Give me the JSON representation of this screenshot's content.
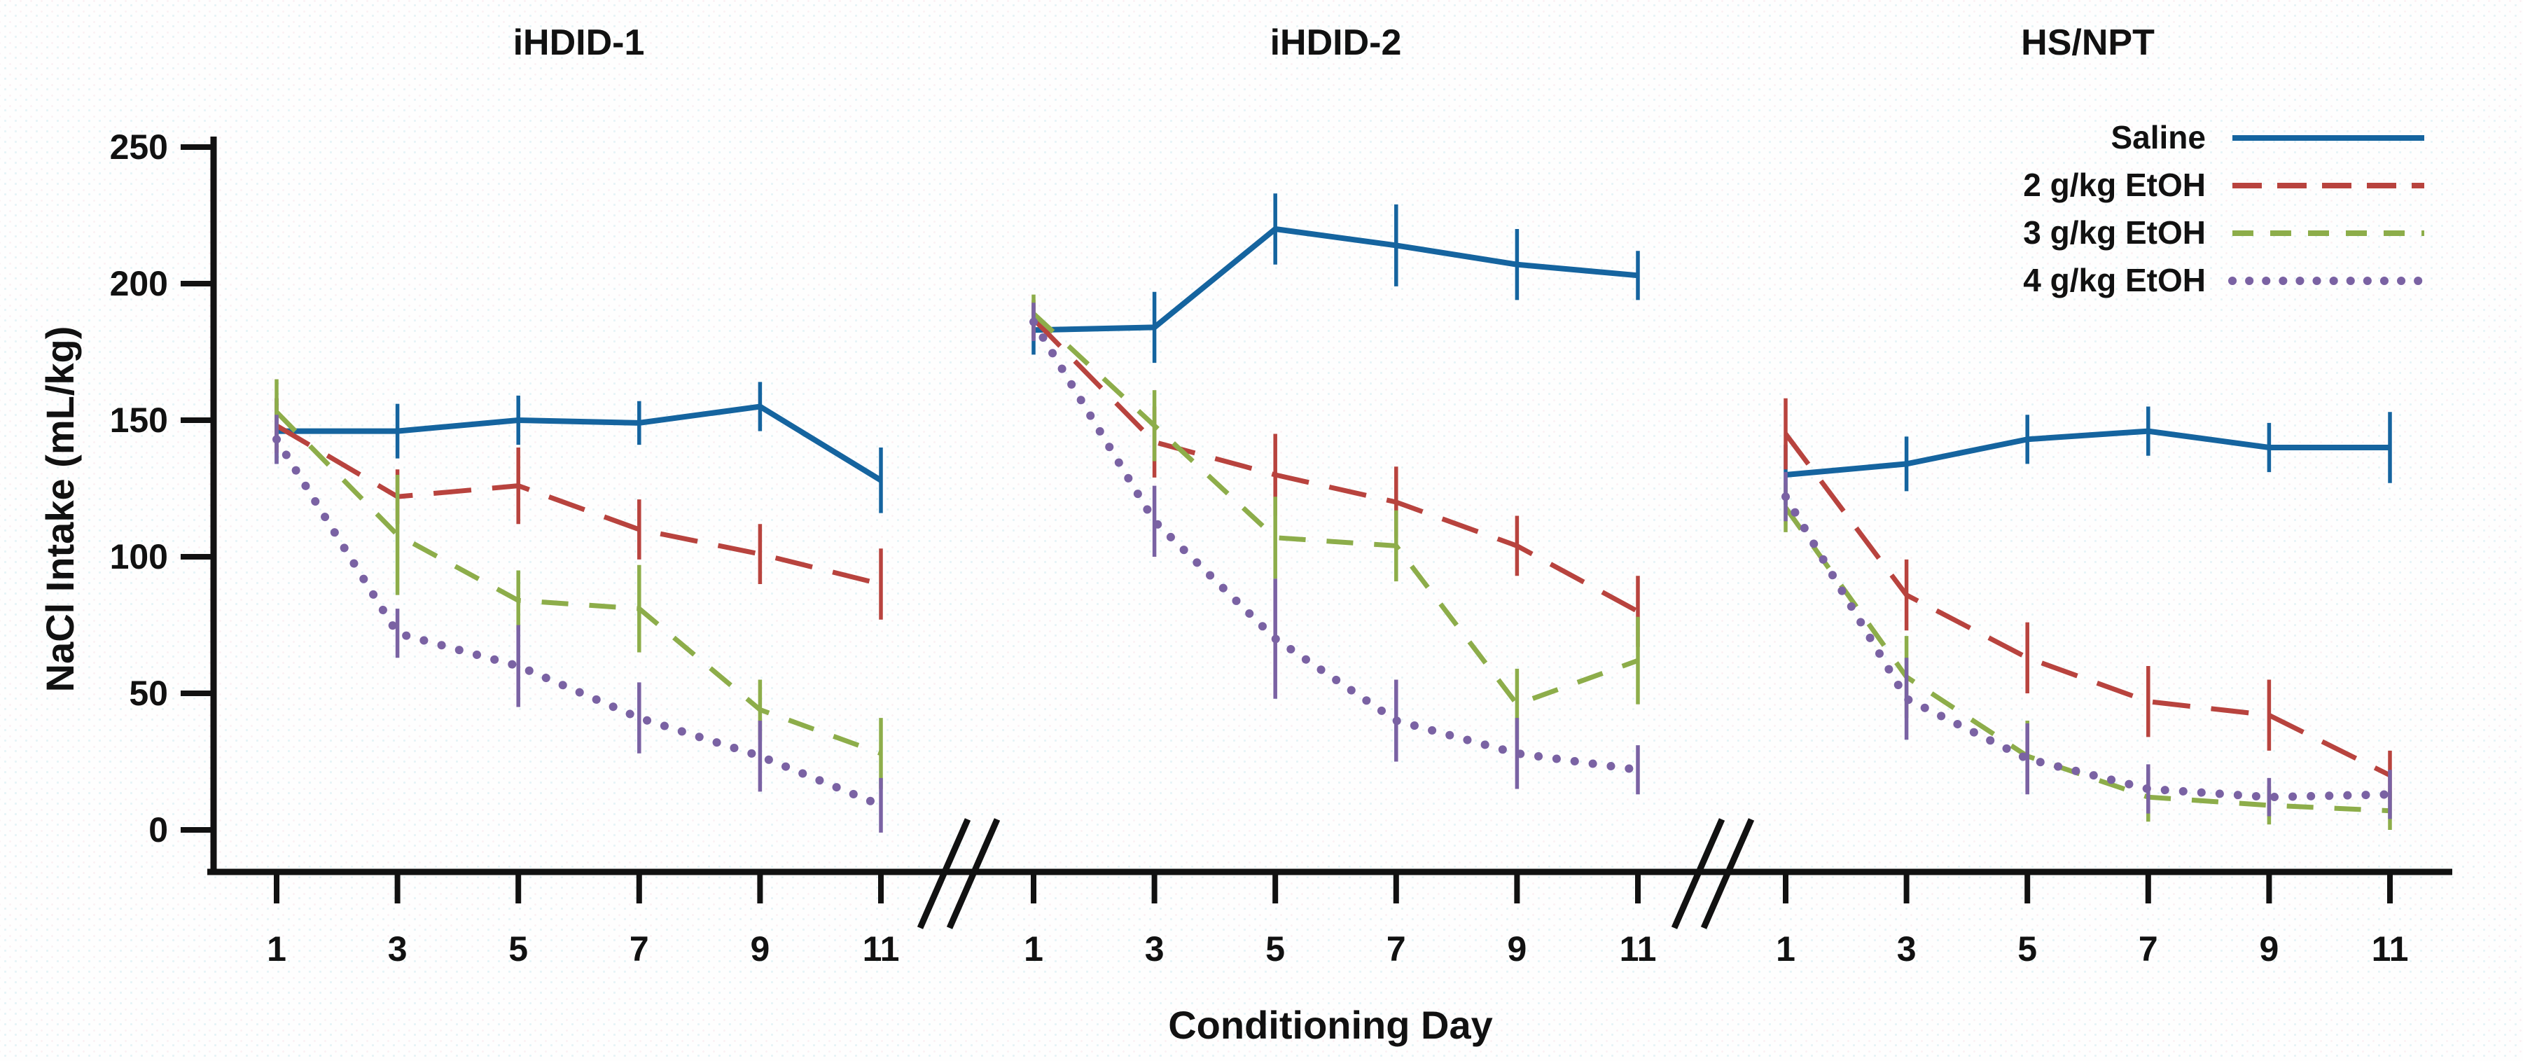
{
  "figure": {
    "y_axis_label": "NaCl Intake (mL/kg)",
    "x_axis_label": "Conditioning Day",
    "background": "#fefefe",
    "axis_color": "#111111"
  },
  "legend": {
    "position": "top-right",
    "entries": [
      {
        "label": "Saline",
        "color": "#15649f",
        "dash": "solid"
      },
      {
        "label": "2 g/kg EtOH",
        "color": "#b8433e",
        "dash": "long"
      },
      {
        "label": "3 g/kg EtOH",
        "color": "#8dad4a",
        "dash": "dash"
      },
      {
        "label": "4 g/kg EtOH",
        "color": "#7a62a3",
        "dash": "dot"
      }
    ]
  },
  "chart_data": {
    "type": "line",
    "title": "",
    "xlabel": "Conditioning Day",
    "ylabel": "NaCl Intake (mL/kg)",
    "x": [
      1,
      3,
      5,
      7,
      9,
      11
    ],
    "y_ticks": [
      0,
      50,
      100,
      150,
      200,
      250
    ],
    "ylim": [
      0,
      250
    ],
    "grid": false,
    "error_bars": true,
    "panels": [
      {
        "title": "iHDID-1",
        "series": [
          {
            "name": "Saline",
            "values": [
              146,
              146,
              150,
              149,
              155,
              128
            ],
            "errors": [
              12,
              10,
              9,
              8,
              9,
              12
            ]
          },
          {
            "name": "2 g/kg EtOH",
            "values": [
              148,
              122,
              126,
              110,
              101,
              90
            ],
            "errors": [
              10,
              10,
              14,
              11,
              11,
              13
            ]
          },
          {
            "name": "3 g/kg EtOH",
            "values": [
              153,
              108,
              84,
              81,
              44,
              28
            ],
            "errors": [
              12,
              22,
              11,
              16,
              11,
              13
            ]
          },
          {
            "name": "4 g/kg EtOH",
            "values": [
              143,
              72,
              60,
              41,
              27,
              9
            ],
            "errors": [
              9,
              9,
              15,
              13,
              13,
              10
            ]
          }
        ]
      },
      {
        "title": "iHDID-2",
        "series": [
          {
            "name": "Saline",
            "values": [
              183,
              184,
              220,
              214,
              207,
              203
            ],
            "errors": [
              9,
              13,
              13,
              15,
              13,
              9
            ]
          },
          {
            "name": "2 g/kg EtOH",
            "values": [
              187,
              142,
              130,
              120,
              104,
              80
            ],
            "errors": [
              7,
              13,
              15,
              13,
              11,
              13
            ]
          },
          {
            "name": "3 g/kg EtOH",
            "values": [
              189,
              148,
              107,
              104,
              46,
              62
            ],
            "errors": [
              7,
              13,
              15,
              13,
              13,
              16
            ]
          },
          {
            "name": "4 g/kg EtOH",
            "values": [
              186,
              113,
              70,
              40,
              28,
              22
            ],
            "errors": [
              7,
              13,
              22,
              15,
              13,
              9
            ]
          }
        ]
      },
      {
        "title": "HS/NPT",
        "series": [
          {
            "name": "Saline",
            "values": [
              130,
              134,
              143,
              146,
              140,
              140
            ],
            "errors": [
              11,
              10,
              9,
              9,
              9,
              13
            ]
          },
          {
            "name": "2 g/kg EtOH",
            "values": [
              145,
              86,
              63,
              47,
              42,
              20
            ],
            "errors": [
              13,
              13,
              13,
              13,
              13,
              9
            ]
          },
          {
            "name": "3 g/kg EtOH",
            "values": [
              118,
              56,
              27,
              12,
              9,
              7
            ],
            "errors": [
              9,
              15,
              13,
              9,
              7,
              7
            ]
          },
          {
            "name": "4 g/kg EtOH",
            "values": [
              122,
              48,
              26,
              15,
              12,
              13
            ],
            "errors": [
              9,
              15,
              13,
              9,
              7,
              9
            ]
          }
        ]
      }
    ]
  }
}
